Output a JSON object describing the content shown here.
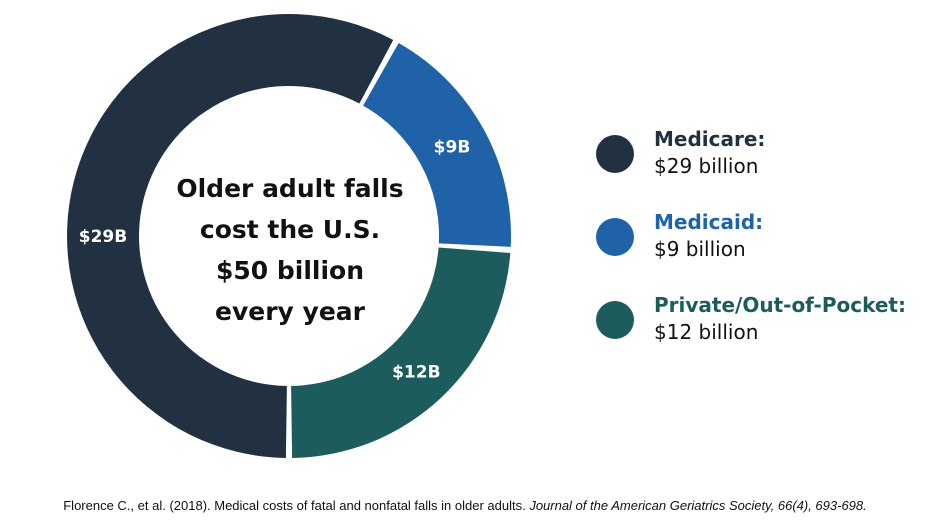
{
  "chart_data": {
    "type": "pie",
    "variant": "donut",
    "title_lines": [
      "Older adult falls",
      "cost the U.S.",
      "$50 billion",
      "every year"
    ],
    "slices": [
      {
        "name": "Medicare:",
        "value": 29,
        "label": "$29B",
        "legend_value": "$29 billion",
        "color": "#223142",
        "name_color": "#223142"
      },
      {
        "name": "Medicaid:",
        "value": 9,
        "label": "$9B",
        "legend_value": "$9 billion",
        "color": "#1f62a8",
        "name_color": "#1f62a8"
      },
      {
        "name": "Private/Out-of-Pocket:",
        "value": 12,
        "label": "$12B",
        "legend_value": "$12 billion",
        "color": "#1d5c5c",
        "name_color": "#1d5c5c"
      }
    ],
    "legend_position": "right"
  },
  "citation": {
    "text": "Florence C., et al. (2018). Medical costs of fatal and nonfatal falls in older adults. ",
    "journal": "Journal of the American Geriatrics Society, 66(4), 693-698."
  }
}
